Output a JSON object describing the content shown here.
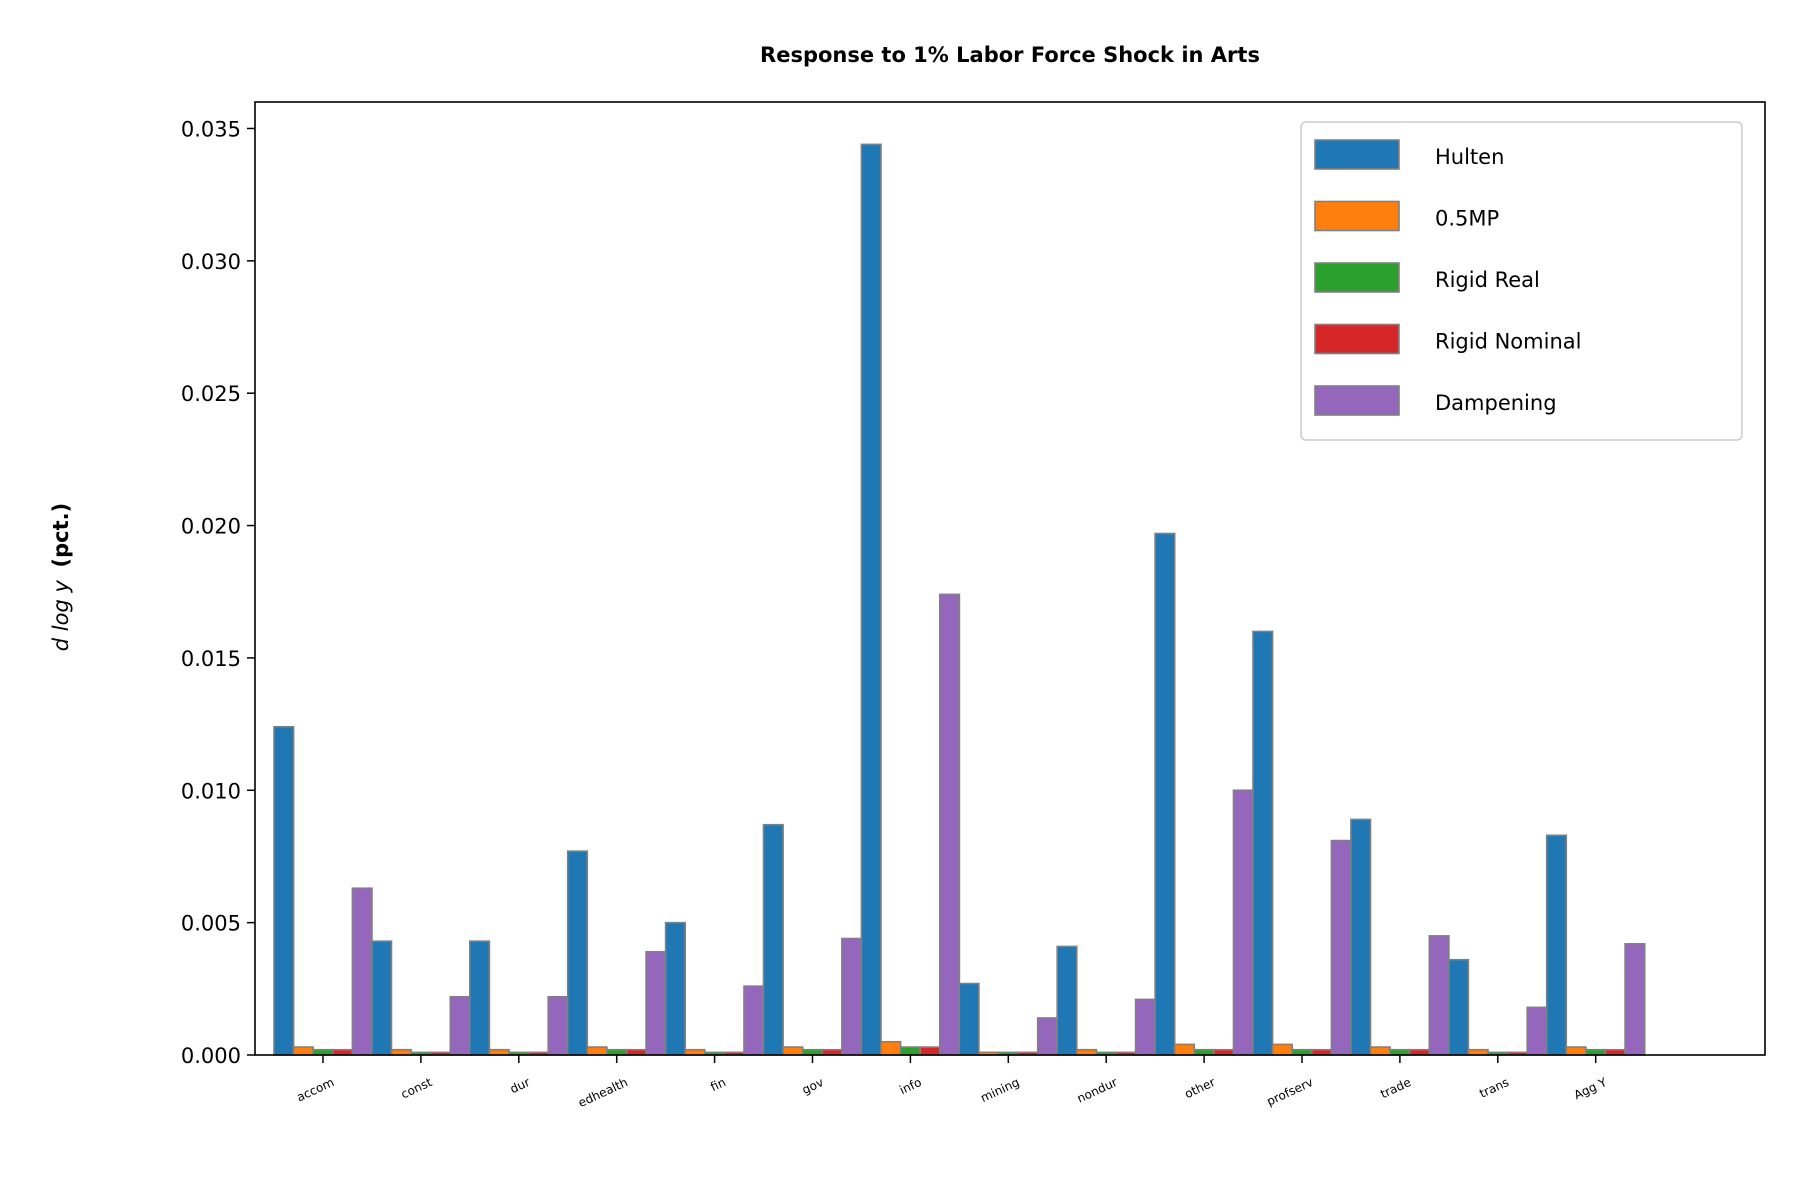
{
  "chart_data": {
    "type": "bar",
    "title": "Response to 1% Labor Force Shock in Arts",
    "ylabel_math": "d log y",
    "ylabel": "(pct.)",
    "xlabel": "",
    "ylim": [
      0,
      0.036
    ],
    "yticks": [
      "0.000",
      "0.005",
      "0.010",
      "0.015",
      "0.020",
      "0.025",
      "0.030",
      "0.035"
    ],
    "legend_position": "top-right",
    "grid": false,
    "categories": [
      "accom",
      "const",
      "dur",
      "edhealth",
      "fin",
      "gov",
      "info",
      "mining",
      "nondur",
      "other",
      "profserv",
      "trade",
      "trans",
      "Agg Y"
    ],
    "series": [
      {
        "name": "Hulten",
        "color": "#1f77b4",
        "values": [
          0.0124,
          0.0043,
          0.0043,
          0.0077,
          0.005,
          0.0087,
          0.0344,
          0.0027,
          0.0041,
          0.0197,
          0.016,
          0.0089,
          0.0036,
          0.0083
        ]
      },
      {
        "name": "0.5MP",
        "color": "#ff7f0e",
        "values": [
          0.0003,
          0.0002,
          0.0002,
          0.0003,
          0.0002,
          0.0003,
          0.0005,
          0.0001,
          0.0002,
          0.0004,
          0.0004,
          0.0003,
          0.0002,
          0.0003
        ]
      },
      {
        "name": "Rigid Real",
        "color": "#2ca02c",
        "values": [
          0.0002,
          0.0001,
          0.0001,
          0.0002,
          0.0001,
          0.0002,
          0.0003,
          0.0001,
          0.0001,
          0.0002,
          0.0002,
          0.0002,
          0.0001,
          0.0002
        ]
      },
      {
        "name": "Rigid Nominal",
        "color": "#d62728",
        "values": [
          0.0002,
          0.0001,
          0.0001,
          0.0002,
          0.0001,
          0.0002,
          0.0003,
          0.0001,
          0.0001,
          0.0002,
          0.0002,
          0.0002,
          0.0001,
          0.0002
        ]
      },
      {
        "name": "Dampening",
        "color": "#9467bd",
        "values": [
          0.0063,
          0.0022,
          0.0022,
          0.0039,
          0.0026,
          0.0044,
          0.0174,
          0.0014,
          0.0021,
          0.01,
          0.0081,
          0.0045,
          0.0018,
          0.0042
        ]
      }
    ]
  }
}
